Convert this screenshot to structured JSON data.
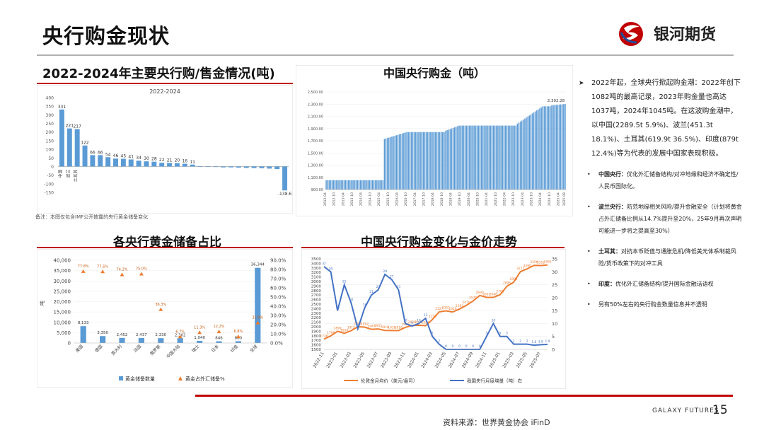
{
  "page": {
    "title": "央行购金现状",
    "logo_text": "银河期货",
    "footer_brand": "GALAXY FUTURES",
    "page_number": "15",
    "source": "资料来源：世界黄金协会 iFinD"
  },
  "sections": {
    "purchases_title": "2022-2024年主要央行购/售金情况(吨)",
    "china_title": "中国央行购金（吨）",
    "reserves_title": "各央行黄金储备占比",
    "trend_title": "中国央行购金变化与金价走势"
  },
  "note1": "备注：本图仅包含IMF公开披露的央行黄金储备变化",
  "text_panel": {
    "lead": "2022年起，全球央行掀起购金潮：2022年创下1082吨的最高记录，2023年购金量也高达1037吨，2024年1045吨。在这波购金潮中，以中国(2289.5t 5.9%)、波兰(451.3t 18.1%)、土耳其(619.9t 36.5%)、印度(879t 12.4%)等为代表的发展中国家表现积极。",
    "items": [
      {
        "name": "中国央行：",
        "text": "优化外汇储备结构/对冲地缘和经济不确定性/人民币国际化。"
      },
      {
        "name": "波兰央行：",
        "text": "防范地缘相关风险/提升金融安全（计划将黄金占外汇储备比例从14.7%提升至20%，25年9月再次声明可能进一步将之提高至30%）"
      },
      {
        "name": "土耳其：",
        "text": "对抗本币贬值与通胀危机/降低美元体系制裁风险/货币政策下的对冲工具"
      },
      {
        "name": "印度：",
        "text": "优化外汇储备结构/提升国际金融话语权"
      },
      {
        "name": "",
        "text": "另有50%左右的央行购金数量信息并不透明"
      }
    ]
  },
  "chart_data": [
    {
      "type": "bar",
      "title": "2022-2024",
      "categories": [
        "中国",
        "波兰",
        "土耳其",
        "",
        "",
        "",
        "",
        "",
        "",
        "",
        "",
        "",
        "",
        "",
        "",
        "",
        "",
        "",
        "",
        "",
        "",
        "",
        "",
        "",
        "",
        "",
        "",
        "",
        "",
        ""
      ],
      "values": [
        331,
        221,
        217,
        122,
        66,
        66,
        54,
        46,
        45,
        41,
        34,
        30,
        28,
        22,
        21,
        20,
        16,
        11,
        -1,
        -2,
        -3,
        -5,
        -5,
        -6,
        -8,
        -9,
        -10,
        -12,
        -15,
        -138.6
      ],
      "data_labels": [
        "331",
        "221",
        "217",
        "122",
        "66",
        "66",
        "54",
        "46",
        "45",
        "41",
        "34",
        "30",
        "28",
        "22",
        "21",
        "20",
        "16",
        "11",
        "",
        "",
        "",
        "",
        "",
        "",
        "",
        "",
        "",
        "",
        "",
        "-138.6"
      ],
      "ylim": [
        -150,
        400
      ],
      "yticks": [
        "400",
        "350",
        "300",
        "250",
        "200",
        "150",
        "100",
        "50",
        "0",
        "-50",
        "-100",
        "-150"
      ],
      "color": "#5b9bd5"
    },
    {
      "type": "bar",
      "title": "中国央行购金（吨）",
      "x_range": [
        "2012-04",
        "2025-08"
      ],
      "xticks": [
        "2012-04",
        "2012-10",
        "2013-04",
        "2013-10",
        "2014-04",
        "2014-10",
        "2015-04",
        "2015-10",
        "2016-04",
        "2016-10",
        "2017-04",
        "2017-10",
        "2018-04",
        "2018-10",
        "2019-04",
        "2019-10",
        "2020-04",
        "2020-10",
        "2021-04",
        "2021-10",
        "2022-04",
        "2022-10",
        "2023-04",
        "2023-10",
        "2024-04",
        "2024-10",
        "2025-04",
        "2025-08"
      ],
      "levels": [
        {
          "from": "2012-04",
          "to": "2015-06",
          "value": 1054.09
        },
        {
          "from": "2015-07",
          "to": "2016-10",
          "value": 1730,
          "end_value": 1842.56
        },
        {
          "from": "2016-11",
          "to": "2018-11",
          "value": 1842.56
        },
        {
          "from": "2018-12",
          "to": "2019-09",
          "value": 1864,
          "end_value": 1948.31
        },
        {
          "from": "2019-10",
          "to": "2022-11",
          "value": 1948.31
        },
        {
          "from": "2022-12",
          "to": "2024-05",
          "value": 1980,
          "end_value": 2264.32
        },
        {
          "from": "2024-06",
          "to": "2024-10",
          "value": 2264.32
        },
        {
          "from": "2024-11",
          "to": "2025-08",
          "value": 2280,
          "end_value": 2302.28
        }
      ],
      "last_label": "2,302.28",
      "ylim": [
        900,
        2500
      ],
      "yticks": [
        "2,500.00",
        "2,300.00",
        "2,100.00",
        "1,900.00",
        "1,700.00",
        "1,500.00",
        "1,300.00",
        "1,100.00",
        "900.00"
      ],
      "color": "#5b9bd5"
    },
    {
      "type": "bar",
      "title": "各央行黄金储备占比",
      "categories": [
        "美国",
        "德国",
        "意大利",
        "法国",
        "俄罗斯",
        "中国大陆",
        "瑞士",
        "日本",
        "印度",
        "全球"
      ],
      "series": [
        {
          "name": "黄金储备数量",
          "values": [
            8133,
            3350,
            2452,
            2437,
            2330,
            2302,
            1040,
            846,
            880,
            36344
          ],
          "labels": [
            "8,133",
            "3,350",
            "2,452",
            "2,437",
            "2,330",
            "2,302",
            "1,040",
            "846",
            "880",
            "36,344"
          ],
          "color": "#5b9bd5"
        },
        {
          "name": "黄金占外汇储备%",
          "values": [
            77.8,
            77.5,
            74.2,
            75.0,
            36.3,
            6.7,
            11.3,
            12.2,
            6.8,
            21.8
          ],
          "labels": [
            "77.8%",
            "77.5%",
            "74.2%",
            "75.0%",
            "36.3%",
            "6.7%",
            "11.3%",
            "12.2%",
            "6.8%",
            "21.8%"
          ],
          "color": "#ed7d31"
        }
      ],
      "ylabel": "吨",
      "ylim": [
        0,
        40000
      ],
      "y2lim": [
        0,
        90
      ],
      "yticks": [
        "40,000",
        "35,000",
        "30,000",
        "25,000",
        "20,000",
        "15,000",
        "10,000",
        "5,000",
        "0"
      ],
      "y2ticks": [
        "90.0%",
        "80.0%",
        "70.0%",
        "60.0%",
        "50.0%",
        "40.0%",
        "30.0%",
        "20.0%",
        "10.0%",
        "0.0%"
      ]
    },
    {
      "type": "line",
      "title": "中国央行购金变化与金价走势",
      "x": [
        "2022-11",
        "2022-12",
        "2023-01",
        "2023-02",
        "2023-03",
        "2023-04",
        "2023-05",
        "2023-06",
        "2023-07",
        "2023-08",
        "2023-09",
        "2023-10",
        "2023-11",
        "2023-12",
        "2024-01",
        "2024-02",
        "2024-03",
        "2024-04",
        "2024-05",
        "2024-06",
        "2024-07",
        "2024-08",
        "2024-09",
        "2024-10",
        "2024-11",
        "2024-12",
        "2025-01",
        "2025-02",
        "2025-03",
        "2025-04",
        "2025-05",
        "2025-06",
        "2025-07",
        "2025-08"
      ],
      "xticks": [
        "2022-11",
        "2023-01",
        "2023-03",
        "2023-05",
        "2023-07",
        "2023-09",
        "2023-11",
        "2024-01",
        "2024-03",
        "2024-05",
        "2024-07",
        "2024-09",
        "2024-11",
        "2025-01",
        "2025-03",
        "2025-05",
        "2025-07"
      ],
      "series": [
        {
          "name": "伦敦金月均价（美元/盎司）",
          "axis": "left",
          "color": "#ed7d31",
          "values": [
            1726,
            1798,
            1899,
            1854,
            1912,
            2000,
            1992,
            1943,
            1951,
            1918,
            1916,
            1916,
            1985,
            2029,
            2034,
            2024,
            2159,
            2327,
            2351,
            2326,
            2392,
            2470,
            2570,
            2690,
            2651,
            2648,
            2708,
            2895,
            2984,
            3217,
            3280,
            3356,
            3352,
            3365
          ]
        },
        {
          "name": "我国央行月度增量（吨）右",
          "axis": "right",
          "color": "#4472c4",
          "values": [
            32,
            30,
            15,
            25,
            18,
            8,
            16,
            21,
            23,
            29,
            27,
            23,
            10,
            9,
            10,
            12,
            5,
            2,
            0,
            0,
            0,
            0,
            0,
            0,
            5,
            10,
            5,
            5,
            2,
            2,
            2,
            1.6,
            1.8,
            1.9
          ]
        }
      ],
      "ylim": [
        1500,
        3500
      ],
      "y2lim": [
        0,
        35
      ],
      "yticks": [
        "3500",
        "3400",
        "3300",
        "3200",
        "3100",
        "3000",
        "2900",
        "2800",
        "2700",
        "2600",
        "2500",
        "2400",
        "2300",
        "2200",
        "2100",
        "2000",
        "1900",
        "1800",
        "1700",
        "1600",
        "1500"
      ],
      "y2ticks": [
        "35",
        "30",
        "25",
        "20",
        "15",
        "10",
        "5",
        "0"
      ]
    }
  ]
}
